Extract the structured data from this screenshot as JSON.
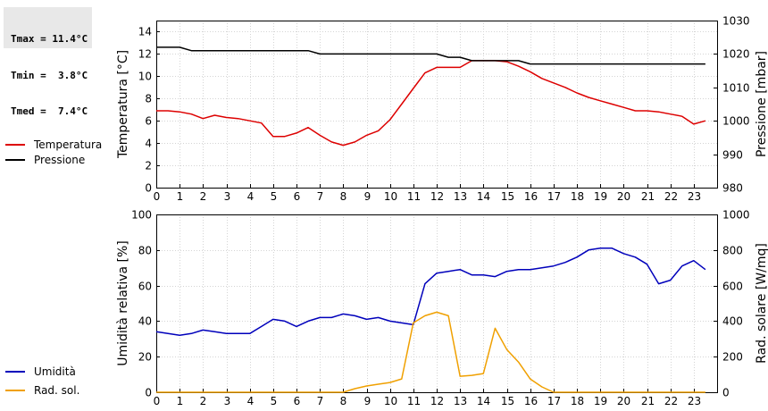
{
  "stats": {
    "tmax": "Tmax = 11.4°C",
    "tmin": "Tmin =  3.8°C",
    "tmed": "Tmed =  7.4°C"
  },
  "chart_data": [
    {
      "type": "line",
      "x_ticks": [
        "0",
        "1",
        "2",
        "3",
        "4",
        "5",
        "6",
        "7",
        "8",
        "9",
        "10",
        "11",
        "12",
        "13",
        "14",
        "15",
        "16",
        "17",
        "18",
        "19",
        "20",
        "21",
        "22",
        "23"
      ],
      "xlim": [
        0,
        24
      ],
      "ylabel": "Temperatura [°C]",
      "ylim": [
        0,
        15
      ],
      "y_ticks": [
        0,
        2,
        4,
        6,
        8,
        10,
        12,
        14
      ],
      "ylabel_right": "Pressione [mbar]",
      "ylim_right": [
        980,
        1030
      ],
      "y_ticks_right": [
        980,
        990,
        1000,
        1010,
        1020,
        1030
      ],
      "grid": true,
      "legend_position": "left",
      "series": [
        {
          "name": "Temperatura",
          "color": "#dd0000",
          "axis": "left",
          "x": [
            0,
            0.5,
            1,
            1.5,
            2,
            2.5,
            3,
            3.5,
            4,
            4.5,
            5,
            5.5,
            6,
            6.5,
            7,
            7.5,
            8,
            8.5,
            9,
            9.5,
            10,
            10.5,
            11,
            11.5,
            12,
            12.5,
            13,
            13.5,
            14,
            14.5,
            15,
            15.5,
            16,
            16.5,
            17,
            17.5,
            18,
            18.5,
            19,
            19.5,
            20,
            20.5,
            21,
            21.5,
            22,
            22.5,
            23,
            23.5
          ],
          "y": [
            6.9,
            6.9,
            6.8,
            6.6,
            6.2,
            6.5,
            6.3,
            6.2,
            6.0,
            5.8,
            4.6,
            4.6,
            4.9,
            5.4,
            4.7,
            4.1,
            3.8,
            4.1,
            4.7,
            5.1,
            6.1,
            7.5,
            8.9,
            10.3,
            10.8,
            10.8,
            10.8,
            11.4,
            11.4,
            11.4,
            11.3,
            10.9,
            10.4,
            9.8,
            9.4,
            9.0,
            8.5,
            8.1,
            7.8,
            7.5,
            7.2,
            6.9,
            6.9,
            6.8,
            6.6,
            6.4,
            5.7,
            6.0
          ]
        },
        {
          "name": "Pressione",
          "color": "#000000",
          "axis": "right",
          "x": [
            0,
            1,
            1.5,
            6.5,
            7,
            12,
            12.5,
            13,
            13.5,
            15.5,
            16,
            23.5
          ],
          "y": [
            1022,
            1022,
            1021,
            1021,
            1020,
            1020,
            1019,
            1019,
            1018,
            1018,
            1017,
            1017
          ]
        }
      ]
    },
    {
      "type": "line",
      "x_ticks": [
        "0",
        "1",
        "2",
        "3",
        "4",
        "5",
        "6",
        "7",
        "8",
        "9",
        "10",
        "11",
        "12",
        "13",
        "14",
        "15",
        "16",
        "17",
        "18",
        "19",
        "20",
        "21",
        "22",
        "23"
      ],
      "xlim": [
        0,
        24
      ],
      "ylabel": "Umidità relativa [%]",
      "ylim": [
        0,
        100
      ],
      "y_ticks": [
        0,
        20,
        40,
        60,
        80,
        100
      ],
      "ylabel_right": "Rad. solare [W/mq]",
      "ylim_right": [
        0,
        1000
      ],
      "y_ticks_right": [
        0,
        200,
        400,
        600,
        800,
        1000
      ],
      "grid": true,
      "legend_position": "left",
      "series": [
        {
          "name": "Umidità",
          "color": "#0000bb",
          "axis": "left",
          "x": [
            0,
            0.5,
            1,
            1.5,
            2,
            2.5,
            3,
            3.5,
            4,
            4.5,
            5,
            5.5,
            6,
            6.5,
            7,
            7.5,
            8,
            8.5,
            9,
            9.5,
            10,
            10.5,
            11,
            11.5,
            12,
            12.5,
            13,
            13.5,
            14,
            14.5,
            15,
            15.5,
            16,
            16.5,
            17,
            17.5,
            18,
            18.5,
            19,
            19.5,
            20,
            20.5,
            21,
            21.5,
            22,
            22.5,
            23,
            23.5
          ],
          "y": [
            34,
            33,
            32,
            33,
            35,
            34,
            33,
            33,
            33,
            37,
            41,
            40,
            37,
            40,
            42,
            42,
            44,
            43,
            41,
            42,
            40,
            39,
            38,
            61,
            67,
            68,
            69,
            66,
            66,
            65,
            68,
            69,
            69,
            70,
            71,
            73,
            76,
            80,
            81,
            81,
            78,
            76,
            72,
            61,
            63,
            71,
            74,
            69
          ]
        },
        {
          "name": "Rad. sol.",
          "color": "#f0a000",
          "axis": "right",
          "x": [
            0,
            7.5,
            8,
            8.5,
            9,
            9.5,
            10,
            10.5,
            11,
            11.5,
            12,
            12.5,
            13,
            13.5,
            14,
            14.5,
            15,
            15.5,
            16,
            16.5,
            17,
            23.5
          ],
          "y": [
            0,
            0,
            0,
            20,
            35,
            45,
            55,
            75,
            390,
            430,
            450,
            430,
            90,
            95,
            105,
            360,
            240,
            170,
            75,
            30,
            0,
            0
          ]
        }
      ]
    }
  ]
}
